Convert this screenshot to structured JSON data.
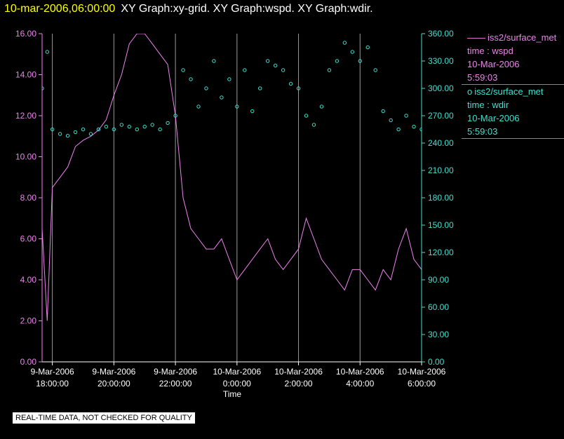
{
  "title": {
    "date": "10-mar-2006,06:00:00",
    "rest": "XY Graph:xy-grid.  XY Graph:wspd.  XY Graph:wdir."
  },
  "legend": {
    "wspd": {
      "source": "iss2/surface_met",
      "var": "time : wspd",
      "date": "10-Mar-2006",
      "time": "5:59:03"
    },
    "wdir": {
      "source": "iss2/surface_met",
      "var": "time : wdir",
      "date": "10-Mar-2006",
      "time": "5:59:03"
    }
  },
  "note": "REAL-TIME DATA, NOT CHECKED FOR QUALITY",
  "colors": {
    "wspd": "#ee82ee",
    "wdir": "#40e0d0",
    "grid": "#999999",
    "background": "#000000"
  },
  "chart_data": {
    "type": "line",
    "xlabel": "Time",
    "x_ticks": [
      {
        "date": "9-Mar-2006",
        "time": "18:00:00"
      },
      {
        "date": "9-Mar-2006",
        "time": "20:00:00"
      },
      {
        "date": "9-Mar-2006",
        "time": "22:00:00"
      },
      {
        "date": "10-Mar-2006",
        "time": "0:00:00"
      },
      {
        "date": "10-Mar-2006",
        "time": "2:00:00"
      },
      {
        "date": "10-Mar-2006",
        "time": "4:00:00"
      },
      {
        "date": "10-Mar-2006",
        "time": "6:00:00"
      }
    ],
    "x_range": [
      "2006-03-09 17:40",
      "2006-03-10 06:00"
    ],
    "y_left": {
      "range": [
        0,
        16
      ],
      "ticks": [
        "0.00",
        "2.00",
        "4.00",
        "6.00",
        "8.00",
        "10.00",
        "12.00",
        "14.00",
        "16.00"
      ]
    },
    "y_right": {
      "range": [
        0,
        360
      ],
      "ticks": [
        "0.00",
        "30.00",
        "60.00",
        "90.00",
        "120.00",
        "150.00",
        "180.00",
        "210.00",
        "240.00",
        "270.00",
        "300.00",
        "330.00",
        "360.00"
      ]
    },
    "grid": "vertical lines at x ticks",
    "series": [
      {
        "name": "time : wspd",
        "axis": "left",
        "style": "line",
        "x": [
          "2006-03-09 17:40",
          "2006-03-09 17:50",
          "2006-03-09 18:00",
          "2006-03-09 18:15",
          "2006-03-09 18:30",
          "2006-03-09 18:45",
          "2006-03-09 19:00",
          "2006-03-09 19:15",
          "2006-03-09 19:30",
          "2006-03-09 19:45",
          "2006-03-09 20:00",
          "2006-03-09 20:15",
          "2006-03-09 20:30",
          "2006-03-09 20:45",
          "2006-03-09 21:00",
          "2006-03-09 21:15",
          "2006-03-09 21:30",
          "2006-03-09 21:45",
          "2006-03-09 22:00",
          "2006-03-09 22:15",
          "2006-03-09 22:30",
          "2006-03-09 22:45",
          "2006-03-09 23:00",
          "2006-03-09 23:15",
          "2006-03-09 23:30",
          "2006-03-09 23:45",
          "2006-03-10 00:00",
          "2006-03-10 00:15",
          "2006-03-10 00:30",
          "2006-03-10 00:45",
          "2006-03-10 01:00",
          "2006-03-10 01:15",
          "2006-03-10 01:30",
          "2006-03-10 01:45",
          "2006-03-10 02:00",
          "2006-03-10 02:15",
          "2006-03-10 02:30",
          "2006-03-10 02:45",
          "2006-03-10 03:00",
          "2006-03-10 03:15",
          "2006-03-10 03:30",
          "2006-03-10 03:45",
          "2006-03-10 04:00",
          "2006-03-10 04:15",
          "2006-03-10 04:30",
          "2006-03-10 04:45",
          "2006-03-10 05:00",
          "2006-03-10 05:15",
          "2006-03-10 05:30",
          "2006-03-10 05:45",
          "2006-03-10 06:00"
        ],
        "values": [
          6.5,
          2.0,
          8.5,
          9.0,
          9.5,
          10.5,
          10.8,
          11.0,
          11.3,
          11.8,
          13.0,
          14.0,
          15.5,
          16.0,
          16.0,
          15.5,
          15.0,
          14.5,
          12.0,
          8.0,
          6.5,
          6.0,
          5.5,
          5.5,
          6.0,
          5.0,
          4.0,
          4.5,
          5.0,
          5.5,
          6.0,
          5.0,
          4.5,
          5.0,
          5.5,
          7.0,
          6.0,
          5.0,
          4.5,
          4.0,
          3.5,
          4.5,
          4.5,
          4.0,
          3.5,
          4.5,
          4.0,
          5.5,
          6.5,
          5.0,
          4.5
        ]
      },
      {
        "name": "time : wdir",
        "axis": "right",
        "style": "markers",
        "x": [
          "2006-03-09 17:40",
          "2006-03-09 17:50",
          "2006-03-09 18:00",
          "2006-03-09 18:15",
          "2006-03-09 18:30",
          "2006-03-09 18:45",
          "2006-03-09 19:00",
          "2006-03-09 19:15",
          "2006-03-09 19:30",
          "2006-03-09 19:45",
          "2006-03-09 20:00",
          "2006-03-09 20:15",
          "2006-03-09 20:30",
          "2006-03-09 20:45",
          "2006-03-09 21:00",
          "2006-03-09 21:15",
          "2006-03-09 21:30",
          "2006-03-09 21:45",
          "2006-03-09 22:00",
          "2006-03-09 22:15",
          "2006-03-09 22:30",
          "2006-03-09 22:45",
          "2006-03-09 23:00",
          "2006-03-09 23:15",
          "2006-03-09 23:30",
          "2006-03-09 23:45",
          "2006-03-10 00:00",
          "2006-03-10 00:15",
          "2006-03-10 00:30",
          "2006-03-10 00:45",
          "2006-03-10 01:00",
          "2006-03-10 01:15",
          "2006-03-10 01:30",
          "2006-03-10 01:45",
          "2006-03-10 02:00",
          "2006-03-10 02:15",
          "2006-03-10 02:30",
          "2006-03-10 02:45",
          "2006-03-10 03:00",
          "2006-03-10 03:15",
          "2006-03-10 03:30",
          "2006-03-10 03:45",
          "2006-03-10 04:00",
          "2006-03-10 04:15",
          "2006-03-10 04:30",
          "2006-03-10 04:45",
          "2006-03-10 05:00",
          "2006-03-10 05:15",
          "2006-03-10 05:30",
          "2006-03-10 05:45",
          "2006-03-10 06:00"
        ],
        "values": [
          300,
          340,
          255,
          250,
          248,
          252,
          255,
          250,
          255,
          258,
          255,
          260,
          258,
          255,
          258,
          260,
          255,
          262,
          270,
          320,
          310,
          280,
          300,
          330,
          290,
          310,
          280,
          320,
          275,
          300,
          330,
          325,
          320,
          305,
          300,
          270,
          260,
          280,
          320,
          330,
          350,
          340,
          330,
          345,
          320,
          275,
          265,
          255,
          270,
          258,
          255
        ]
      }
    ]
  }
}
